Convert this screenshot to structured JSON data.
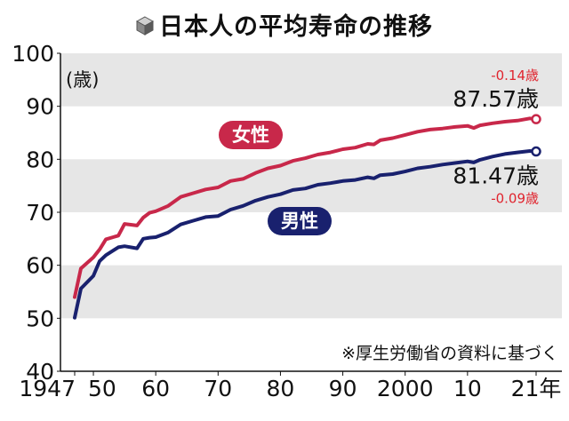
{
  "title": "日本人の平均寿命の推移",
  "icon": "cube-icon",
  "colors": {
    "female": "#c8284a",
    "male": "#19216e",
    "band": "#e6e6e6",
    "delta": "#e0242e"
  },
  "chart_data": {
    "type": "line",
    "title": "日本人の平均寿命の推移",
    "ylabel": "(歳)",
    "xlabel": "",
    "ylim": [
      40,
      100
    ],
    "xlim": [
      1947,
      2021
    ],
    "y_ticks": [
      "40",
      "50",
      "60",
      "70",
      "80",
      "90",
      "100"
    ],
    "x_ticks": [
      {
        "year": 1947,
        "label": "1947"
      },
      {
        "year": 1950,
        "label": "50"
      },
      {
        "year": 1960,
        "label": "60"
      },
      {
        "year": 1970,
        "label": "70"
      },
      {
        "year": 1980,
        "label": "80"
      },
      {
        "year": 1990,
        "label": "90"
      },
      {
        "year": 2000,
        "label": "2000"
      },
      {
        "year": 2010,
        "label": "10"
      },
      {
        "year": 2021,
        "label": "21年"
      }
    ],
    "grid": "alternating horizontal bands",
    "series": [
      {
        "name": "女性",
        "color": "#c8284a",
        "points": [
          [
            1947,
            54.0
          ],
          [
            1948,
            59.4
          ],
          [
            1950,
            61.5
          ],
          [
            1951,
            63.0
          ],
          [
            1952,
            64.9
          ],
          [
            1954,
            65.6
          ],
          [
            1955,
            67.8
          ],
          [
            1957,
            67.5
          ],
          [
            1958,
            69.0
          ],
          [
            1959,
            69.9
          ],
          [
            1960,
            70.2
          ],
          [
            1962,
            71.2
          ],
          [
            1964,
            72.9
          ],
          [
            1966,
            73.6
          ],
          [
            1968,
            74.3
          ],
          [
            1970,
            74.7
          ],
          [
            1972,
            75.9
          ],
          [
            1974,
            76.3
          ],
          [
            1976,
            77.4
          ],
          [
            1978,
            78.3
          ],
          [
            1980,
            78.8
          ],
          [
            1982,
            79.7
          ],
          [
            1984,
            80.2
          ],
          [
            1986,
            80.9
          ],
          [
            1988,
            81.3
          ],
          [
            1990,
            81.9
          ],
          [
            1992,
            82.2
          ],
          [
            1994,
            82.9
          ],
          [
            1995,
            82.8
          ],
          [
            1996,
            83.6
          ],
          [
            1998,
            84.0
          ],
          [
            2000,
            84.6
          ],
          [
            2002,
            85.2
          ],
          [
            2004,
            85.6
          ],
          [
            2006,
            85.8
          ],
          [
            2008,
            86.1
          ],
          [
            2010,
            86.3
          ],
          [
            2011,
            85.9
          ],
          [
            2012,
            86.4
          ],
          [
            2014,
            86.8
          ],
          [
            2016,
            87.1
          ],
          [
            2018,
            87.3
          ],
          [
            2020,
            87.71
          ],
          [
            2021,
            87.57
          ]
        ],
        "end_label": "87.57歳",
        "delta": "-0.14歳"
      },
      {
        "name": "男性",
        "color": "#19216e",
        "points": [
          [
            1947,
            50.1
          ],
          [
            1948,
            55.6
          ],
          [
            1950,
            58.0
          ],
          [
            1951,
            60.8
          ],
          [
            1952,
            61.9
          ],
          [
            1954,
            63.4
          ],
          [
            1955,
            63.6
          ],
          [
            1957,
            63.2
          ],
          [
            1958,
            65.0
          ],
          [
            1959,
            65.2
          ],
          [
            1960,
            65.3
          ],
          [
            1962,
            66.2
          ],
          [
            1964,
            67.7
          ],
          [
            1966,
            68.4
          ],
          [
            1968,
            69.1
          ],
          [
            1970,
            69.3
          ],
          [
            1972,
            70.5
          ],
          [
            1974,
            71.2
          ],
          [
            1976,
            72.2
          ],
          [
            1978,
            72.9
          ],
          [
            1980,
            73.4
          ],
          [
            1982,
            74.2
          ],
          [
            1984,
            74.5
          ],
          [
            1986,
            75.2
          ],
          [
            1988,
            75.5
          ],
          [
            1990,
            75.9
          ],
          [
            1992,
            76.1
          ],
          [
            1994,
            76.6
          ],
          [
            1995,
            76.4
          ],
          [
            1996,
            77.0
          ],
          [
            1998,
            77.2
          ],
          [
            2000,
            77.7
          ],
          [
            2002,
            78.3
          ],
          [
            2004,
            78.6
          ],
          [
            2006,
            79.0
          ],
          [
            2008,
            79.3
          ],
          [
            2010,
            79.6
          ],
          [
            2011,
            79.4
          ],
          [
            2012,
            79.9
          ],
          [
            2014,
            80.5
          ],
          [
            2016,
            81.0
          ],
          [
            2018,
            81.3
          ],
          [
            2020,
            81.56
          ],
          [
            2021,
            81.47
          ]
        ],
        "end_label": "81.47歳",
        "delta": "-0.09歳"
      }
    ],
    "note": "※厚生労働省の資料に基づく"
  }
}
